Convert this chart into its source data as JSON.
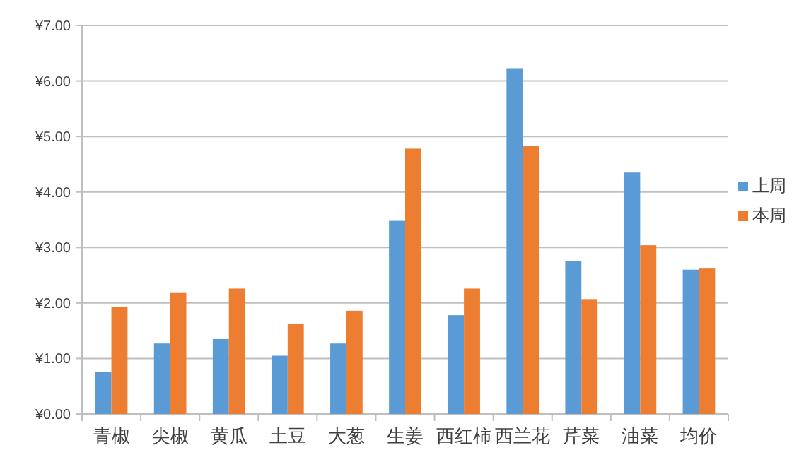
{
  "chart_data": {
    "type": "bar",
    "categories": [
      "青椒",
      "尖椒",
      "黄瓜",
      "土豆",
      "大葱",
      "生姜",
      "西红柿",
      "西兰花",
      "芹菜",
      "油菜",
      "均价"
    ],
    "series": [
      {
        "name": "上周",
        "color": "#5b9bd5",
        "values": [
          0.76,
          1.27,
          1.35,
          1.05,
          1.27,
          3.48,
          1.78,
          6.23,
          2.75,
          4.35,
          2.6
        ]
      },
      {
        "name": "本周",
        "color": "#ed7d31",
        "values": [
          1.93,
          2.18,
          2.26,
          1.63,
          1.86,
          4.78,
          2.26,
          4.83,
          2.07,
          3.04,
          2.62
        ]
      }
    ],
    "ylim": [
      0,
      7
    ],
    "yticks": [
      {
        "value": 0,
        "label": "¥0.00"
      },
      {
        "value": 1,
        "label": "¥1.00"
      },
      {
        "value": 2,
        "label": "¥2.00"
      },
      {
        "value": 3,
        "label": "¥3.00"
      },
      {
        "value": 4,
        "label": "¥4.00"
      },
      {
        "value": 5,
        "label": "¥5.00"
      },
      {
        "value": 6,
        "label": "¥6.00"
      },
      {
        "value": 7,
        "label": "¥7.00"
      }
    ],
    "grid": "y",
    "legend": "right"
  }
}
